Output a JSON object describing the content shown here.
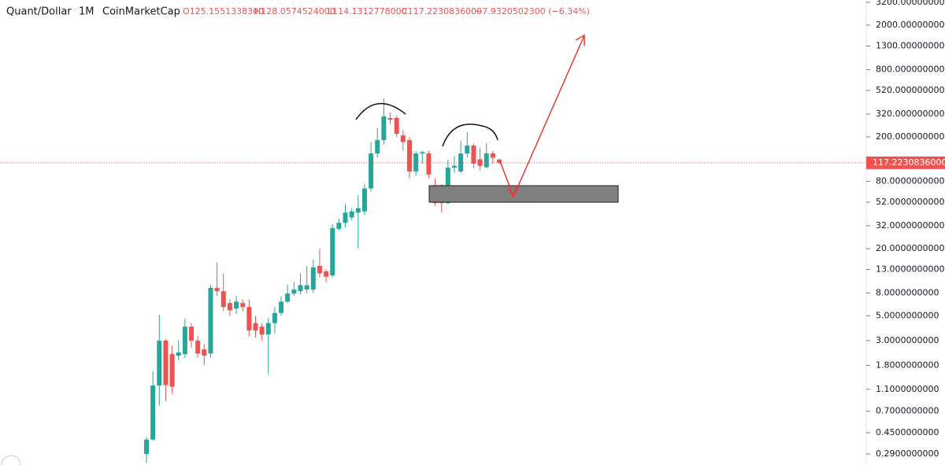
{
  "chart_data": {
    "type": "candlestick",
    "symbol": "Quant/Dollar",
    "interval": "1M",
    "source": "CoinMarketCap",
    "ohlc_text": {
      "open": "O125.1551338300",
      "high": "H128.0574524000",
      "low": "L114.1312778000",
      "close": "C117.2230836000",
      "change": "−7.9320502300 (−6.34%)"
    },
    "log_scale": true,
    "up_color": "#26a69a",
    "down_color": "#ef5350",
    "ylim": [
      0.231,
      3357
    ],
    "yticks": [
      {
        "value": 3200,
        "label": "3200.0000000000"
      },
      {
        "value": 2000,
        "label": "2000.0000000000"
      },
      {
        "value": 1300,
        "label": "1300.0000000000"
      },
      {
        "value": 800,
        "label": "800.0000000000"
      },
      {
        "value": 520,
        "label": "520.0000000000"
      },
      {
        "value": 320,
        "label": "320.0000000000"
      },
      {
        "value": 200,
        "label": "200.0000000000"
      },
      {
        "value": 80,
        "label": "80.0000000000"
      },
      {
        "value": 52,
        "label": "52.0000000000"
      },
      {
        "value": 32,
        "label": "32.0000000000"
      },
      {
        "value": 20,
        "label": "20.0000000000"
      },
      {
        "value": 13,
        "label": "13.0000000000"
      },
      {
        "value": 8,
        "label": "8.0000000000"
      },
      {
        "value": 5,
        "label": "5.0000000000"
      },
      {
        "value": 3,
        "label": "3.0000000000"
      },
      {
        "value": 1.8,
        "label": "1.8000000000"
      },
      {
        "value": 1.1,
        "label": "1.1000000000"
      },
      {
        "value": 0.7,
        "label": "0.7000000000"
      },
      {
        "value": 0.45,
        "label": "0.4500000000"
      },
      {
        "value": 0.29,
        "label": "0.2900000000"
      }
    ],
    "last_price": {
      "value": 117.2230836,
      "label": "117.2230836000"
    },
    "open": [
      0.29,
      0.39,
      1.19,
      3.0,
      2.27,
      2.2,
      2.27,
      4.0,
      3.0,
      2.5,
      2.3,
      8.9,
      8.3,
      6.5,
      5.8,
      6.5,
      6.0,
      4.3,
      4.0,
      3.4,
      4.3,
      5.3,
      6.7,
      7.9,
      8.3,
      8.6,
      8.6,
      14,
      12.5,
      11.5,
      30,
      34,
      38,
      42,
      43,
      69,
      142,
      187,
      295,
      295,
      206,
      187,
      98,
      142,
      142,
      74,
      74,
      51,
      106,
      98,
      142,
      167,
      126,
      107,
      142,
      125.1551338
    ],
    "high": [
      0.41,
      1.6,
      5.1,
      3.1,
      2.7,
      3.0,
      4.7,
      4.3,
      3.3,
      2.8,
      9.5,
      15,
      12,
      7,
      7.5,
      7,
      7,
      5,
      4.3,
      4.8,
      6,
      7.5,
      9.5,
      10,
      12,
      14,
      16,
      20,
      13,
      33,
      37,
      50,
      46,
      60,
      75,
      180,
      240,
      440,
      330,
      310,
      230,
      200,
      150,
      150,
      150,
      85,
      75,
      125,
      135,
      185,
      220,
      175,
      160,
      175,
      150,
      128.0574524
    ],
    "low": [
      0.24,
      0.38,
      0.79,
      0.86,
      1.0,
      2.0,
      2.1,
      2.6,
      2.1,
      1.8,
      2.1,
      7.5,
      5.5,
      5,
      5.2,
      5.5,
      3.3,
      3.2,
      3.0,
      1.5,
      3.5,
      5,
      6.5,
      7.5,
      7.8,
      8,
      8,
      11,
      10,
      11,
      29,
      31,
      36,
      20,
      40,
      65,
      130,
      170,
      260,
      200,
      150,
      85,
      90,
      115,
      85,
      48,
      42,
      50,
      95,
      95,
      130,
      105,
      100,
      105,
      115,
      114.1312778
    ],
    "close": [
      0.39,
      1.19,
      3.0,
      1.2,
      1.16,
      2.35,
      4.0,
      3.0,
      2.3,
      2.2,
      8.9,
      8.3,
      6.0,
      5.6,
      6.7,
      6.0,
      3.7,
      3.7,
      3.4,
      4.3,
      5.3,
      6.7,
      7.9,
      8.6,
      9.4,
      9.4,
      13.6,
      12,
      11.2,
      30.5,
      34,
      42,
      43,
      46,
      69,
      142,
      187,
      305,
      285,
      213,
      180,
      98,
      142,
      146,
      92,
      51,
      51,
      106,
      110,
      142,
      167,
      115,
      110,
      142,
      130,
      117.2230836
    ]
  }
}
